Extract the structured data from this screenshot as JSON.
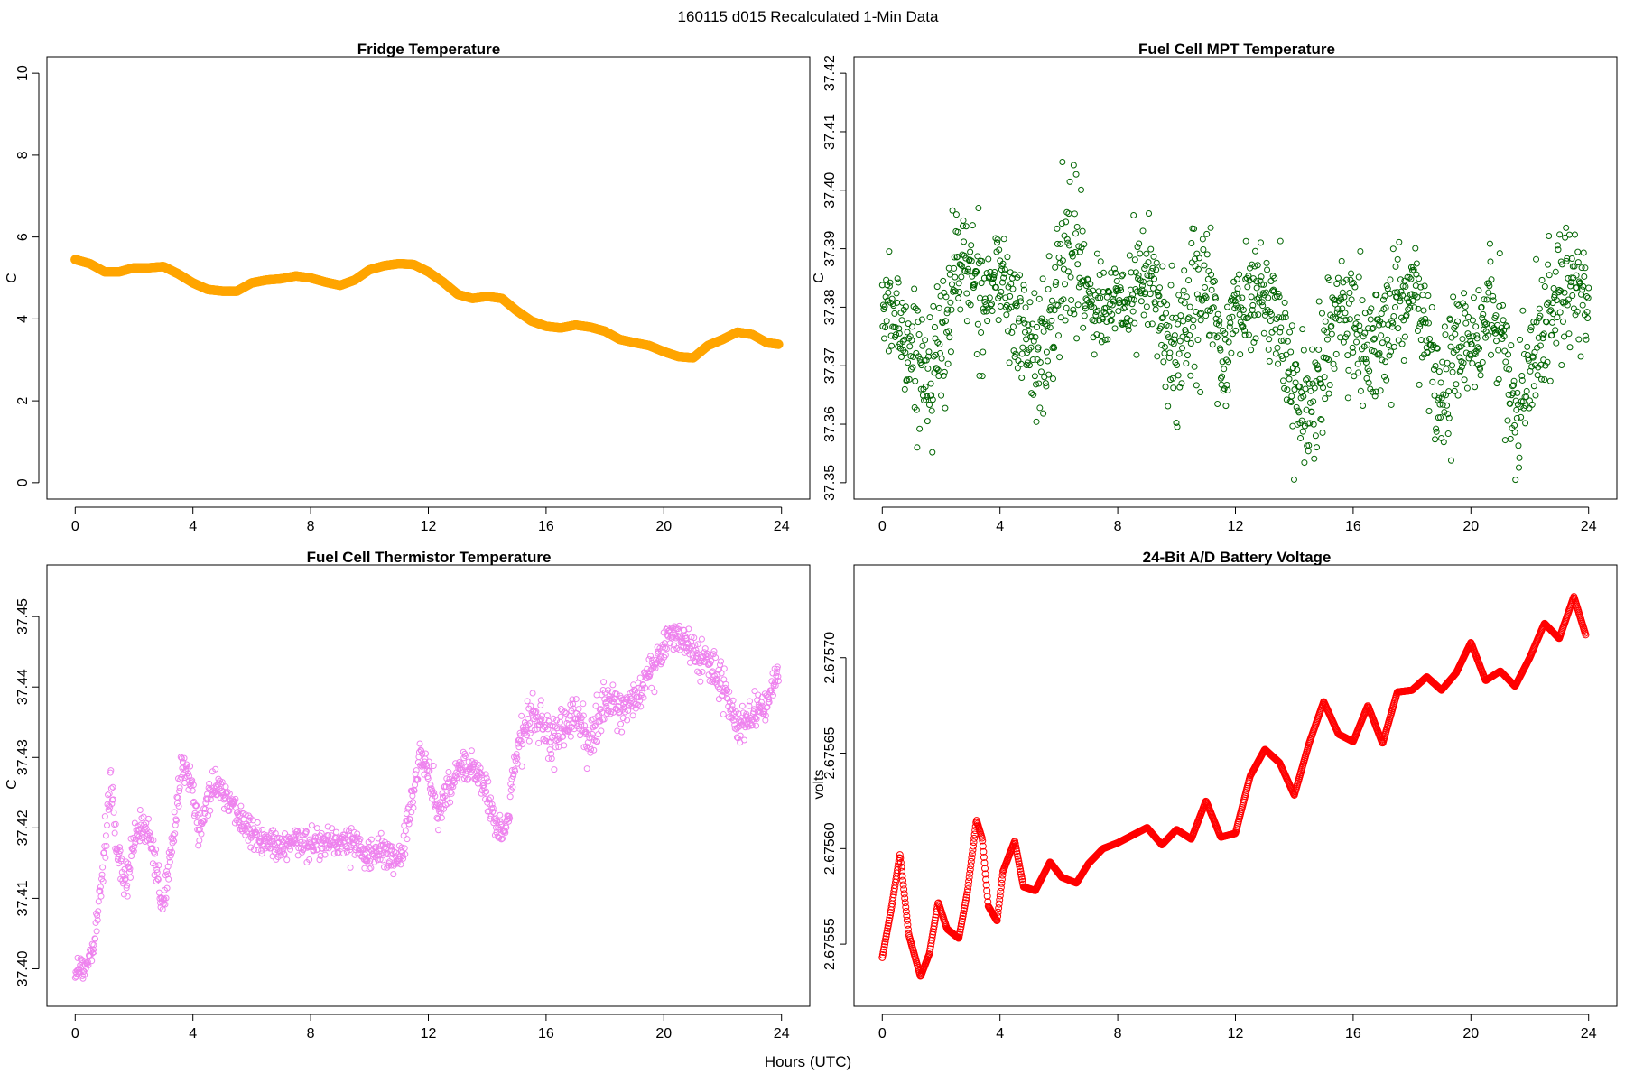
{
  "figure": {
    "title": "160115   d015   Recalculated 1-Min Data",
    "common_xlabel": "Hours (UTC)"
  },
  "chart_data": [
    {
      "type": "scatter",
      "title": "Fridge Temperature",
      "xlabel": "",
      "ylabel": "C",
      "xlim": [
        0,
        24
      ],
      "ylim": [
        0,
        10
      ],
      "xticks": [
        "0",
        "4",
        "8",
        "12",
        "16",
        "20",
        "24"
      ],
      "yticks": [
        "0",
        "2",
        "4",
        "6",
        "8",
        "10"
      ],
      "color": "#ffa500",
      "marker": "filled",
      "series": [
        {
          "name": "Fridge Temperature",
          "x": [
            0.0,
            0.5,
            1.0,
            1.5,
            2.0,
            2.5,
            3.0,
            3.5,
            4.0,
            4.5,
            5.0,
            5.5,
            6.0,
            6.5,
            7.0,
            7.5,
            8.0,
            8.5,
            9.0,
            9.5,
            10.0,
            10.5,
            11.0,
            11.5,
            12.0,
            12.5,
            13.0,
            13.5,
            14.0,
            14.5,
            15.0,
            15.5,
            16.0,
            16.5,
            17.0,
            17.5,
            18.0,
            18.5,
            19.0,
            19.5,
            20.0,
            20.5,
            21.0,
            21.5,
            22.0,
            22.5,
            23.0,
            23.5,
            23.9
          ],
          "y": [
            5.45,
            5.35,
            5.15,
            5.15,
            5.25,
            5.25,
            5.28,
            5.1,
            4.88,
            4.72,
            4.68,
            4.68,
            4.88,
            4.95,
            4.98,
            5.05,
            5.0,
            4.9,
            4.82,
            4.95,
            5.2,
            5.3,
            5.35,
            5.33,
            5.15,
            4.9,
            4.6,
            4.5,
            4.55,
            4.5,
            4.2,
            3.95,
            3.82,
            3.78,
            3.85,
            3.8,
            3.7,
            3.5,
            3.42,
            3.35,
            3.2,
            3.08,
            3.05,
            3.35,
            3.5,
            3.68,
            3.62,
            3.42,
            3.38
          ]
        }
      ]
    },
    {
      "type": "scatter",
      "title": "Fuel Cell MPT Temperature",
      "xlabel": "",
      "ylabel": "C",
      "xlim": [
        0,
        24
      ],
      "ylim": [
        37.35,
        37.42
      ],
      "xticks": [
        "0",
        "4",
        "8",
        "12",
        "16",
        "20",
        "24"
      ],
      "yticks": [
        "37.35",
        "37.36",
        "37.37",
        "37.38",
        "37.39",
        "37.40",
        "37.41",
        "37.42"
      ],
      "color": "#006400",
      "marker": "open",
      "series": [
        {
          "name": "Fuel Cell MPT Temperature",
          "x": [
            0.0,
            0.5,
            1.0,
            1.5,
            2.0,
            2.5,
            3.0,
            3.5,
            4.0,
            4.5,
            5.0,
            5.5,
            6.0,
            6.5,
            7.0,
            7.5,
            8.0,
            8.5,
            9.0,
            9.5,
            10.0,
            10.5,
            11.0,
            11.5,
            12.0,
            12.5,
            13.0,
            13.5,
            14.0,
            14.5,
            15.0,
            15.5,
            16.0,
            16.5,
            17.0,
            17.5,
            18.0,
            18.5,
            19.0,
            19.5,
            20.0,
            20.5,
            21.0,
            21.5,
            22.0,
            22.5,
            23.0,
            23.5,
            24.0
          ],
          "y": [
            37.38,
            37.378,
            37.373,
            37.369,
            37.372,
            37.388,
            37.386,
            37.382,
            37.386,
            37.378,
            37.374,
            37.371,
            37.384,
            37.392,
            37.382,
            37.38,
            37.38,
            37.382,
            37.386,
            37.378,
            37.37,
            37.383,
            37.384,
            37.371,
            37.379,
            37.382,
            37.382,
            37.378,
            37.366,
            37.362,
            37.372,
            37.377,
            37.376,
            37.372,
            37.375,
            37.38,
            37.382,
            37.375,
            37.362,
            37.374,
            37.372,
            37.378,
            37.376,
            37.362,
            37.37,
            37.375,
            37.385,
            37.383,
            37.38
          ],
          "spread": [
            0.007,
            0.008,
            0.009,
            0.01,
            0.012,
            0.01,
            0.009,
            0.008,
            0.009,
            0.009,
            0.01,
            0.01,
            0.012,
            0.015,
            0.008,
            0.007,
            0.007,
            0.009,
            0.01,
            0.01,
            0.011,
            0.012,
            0.01,
            0.01,
            0.008,
            0.007,
            0.007,
            0.008,
            0.009,
            0.01,
            0.011,
            0.01,
            0.011,
            0.011,
            0.009,
            0.008,
            0.009,
            0.009,
            0.01,
            0.01,
            0.009,
            0.009,
            0.009,
            0.01,
            0.01,
            0.01,
            0.011,
            0.009,
            0.008
          ]
        }
      ]
    },
    {
      "type": "scatter",
      "title": "Fuel Cell Thermistor Temperature",
      "xlabel": "",
      "ylabel": "C",
      "xlim": [
        0,
        24
      ],
      "ylim": [
        37.397,
        37.455
      ],
      "xticks": [
        "0",
        "4",
        "8",
        "12",
        "16",
        "20",
        "24"
      ],
      "yticks": [
        "37.40",
        "37.41",
        "37.42",
        "37.43",
        "37.44",
        "37.45"
      ],
      "color": "#ee82ee",
      "marker": "open",
      "series": [
        {
          "name": "Fuel Cell Thermistor Temperature",
          "x": [
            0.0,
            0.3,
            0.6,
            0.9,
            1.2,
            1.5,
            1.8,
            2.1,
            2.4,
            2.7,
            3.0,
            3.3,
            3.6,
            3.9,
            4.2,
            4.5,
            4.8,
            5.1,
            5.5,
            6.0,
            6.5,
            7.0,
            7.5,
            8.0,
            8.5,
            9.0,
            9.5,
            10.0,
            10.5,
            11.0,
            11.3,
            11.7,
            12.0,
            12.3,
            12.6,
            13.0,
            13.5,
            14.0,
            14.3,
            14.6,
            15.0,
            15.3,
            15.6,
            16.0,
            16.5,
            17.0,
            17.5,
            18.0,
            18.5,
            19.0,
            19.5,
            20.0,
            20.3,
            20.6,
            21.0,
            21.5,
            22.0,
            22.5,
            23.0,
            23.5,
            23.9
          ],
          "y": [
            37.4,
            37.4,
            37.403,
            37.413,
            37.427,
            37.413,
            37.414,
            37.42,
            37.42,
            37.415,
            37.408,
            37.418,
            37.428,
            37.428,
            37.419,
            37.424,
            37.426,
            37.425,
            37.422,
            37.419,
            37.418,
            37.417,
            37.418,
            37.418,
            37.418,
            37.418,
            37.418,
            37.416,
            37.417,
            37.415,
            37.42,
            37.43,
            37.428,
            37.422,
            37.425,
            37.428,
            37.429,
            37.425,
            37.42,
            37.419,
            37.43,
            37.435,
            37.436,
            37.433,
            37.433,
            37.436,
            37.432,
            37.438,
            37.437,
            37.438,
            37.442,
            37.445,
            37.448,
            37.447,
            37.445,
            37.443,
            37.44,
            37.434,
            37.436,
            37.438,
            37.442
          ],
          "spread": [
            0.002,
            0.002,
            0.002,
            0.003,
            0.003,
            0.003,
            0.003,
            0.003,
            0.002,
            0.003,
            0.003,
            0.003,
            0.002,
            0.002,
            0.002,
            0.002,
            0.002,
            0.002,
            0.002,
            0.002,
            0.002,
            0.002,
            0.002,
            0.002,
            0.002,
            0.002,
            0.002,
            0.002,
            0.002,
            0.002,
            0.003,
            0.002,
            0.003,
            0.002,
            0.002,
            0.002,
            0.002,
            0.002,
            0.002,
            0.002,
            0.003,
            0.003,
            0.003,
            0.003,
            0.003,
            0.003,
            0.003,
            0.003,
            0.003,
            0.002,
            0.002,
            0.002,
            0.002,
            0.002,
            0.002,
            0.003,
            0.003,
            0.002,
            0.002,
            0.002,
            0.002
          ]
        }
      ]
    },
    {
      "type": "scatter",
      "title": "24-Bit A/D Battery Voltage",
      "xlabel": "",
      "ylabel": "volts",
      "xlim": [
        0,
        24
      ],
      "ylim": [
        2.675526,
        2.67574
      ],
      "xticks": [
        "0",
        "4",
        "8",
        "12",
        "16",
        "20",
        "24"
      ],
      "yticks": [
        "2.67555",
        "2.67560",
        "2.67565",
        "2.67570"
      ],
      "color": "#ff0000",
      "marker": "open",
      "series": [
        {
          "name": "24-Bit A/D Battery Voltage",
          "x": [
            0.0,
            0.3,
            0.6,
            0.9,
            1.3,
            1.6,
            1.9,
            2.2,
            2.6,
            2.9,
            3.2,
            3.4,
            3.6,
            3.9,
            4.1,
            4.5,
            4.8,
            5.2,
            5.7,
            6.1,
            6.6,
            7.0,
            7.5,
            8.0,
            8.5,
            9.0,
            9.5,
            10.0,
            10.5,
            11.0,
            11.5,
            12.0,
            12.5,
            13.0,
            13.5,
            14.0,
            14.5,
            15.0,
            15.5,
            16.0,
            16.5,
            17.0,
            17.5,
            18.0,
            18.5,
            19.0,
            19.5,
            20.0,
            20.5,
            21.0,
            21.5,
            22.0,
            22.5,
            23.0,
            23.5,
            23.9
          ],
          "y": [
            2.675543,
            2.675568,
            2.675597,
            2.675555,
            2.675533,
            2.675545,
            2.675572,
            2.675558,
            2.675553,
            2.675578,
            2.675615,
            2.675605,
            2.67557,
            2.675562,
            2.675588,
            2.675604,
            2.67558,
            2.675578,
            2.675593,
            2.675585,
            2.675582,
            2.675592,
            2.6756,
            2.675603,
            2.675607,
            2.675611,
            2.675602,
            2.67561,
            2.675605,
            2.675625,
            2.675606,
            2.675608,
            2.675638,
            2.675652,
            2.675645,
            2.675628,
            2.675655,
            2.675677,
            2.67566,
            2.675656,
            2.675675,
            2.675655,
            2.675682,
            2.675683,
            2.67569,
            2.675683,
            2.675692,
            2.675708,
            2.675688,
            2.675693,
            2.675685,
            2.6757,
            2.675718,
            2.67571,
            2.675732,
            2.675712
          ]
        }
      ]
    }
  ]
}
